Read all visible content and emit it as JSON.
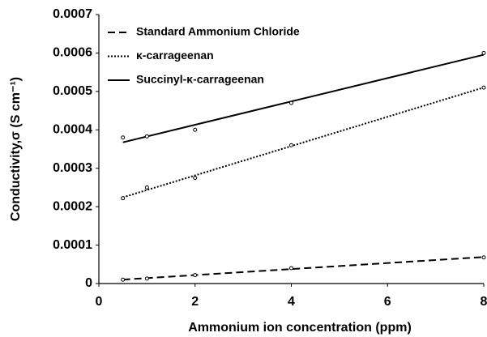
{
  "chart_data": {
    "type": "scatter",
    "xlabel": "Ammonium ion concentration (ppm)",
    "ylabel": "Conductivity,σ (S cm⁻¹)",
    "x": [
      0.5,
      1,
      2,
      4,
      8
    ],
    "xlim": [
      0,
      8
    ],
    "xticks": [
      0,
      2,
      4,
      6,
      8
    ],
    "ylim": [
      0,
      0.0007
    ],
    "yticks": [
      0,
      0.0001,
      0.0002,
      0.0003,
      0.0004,
      0.0005,
      0.0006,
      0.0007
    ],
    "grid": false,
    "legend": "upper left",
    "trendline": "linear",
    "series": [
      {
        "name": "Standard Ammonium Chloride",
        "color": "#000000",
        "line_style": "dashed",
        "values": [
          1e-05,
          1.3e-05,
          2.2e-05,
          4e-05,
          6.8e-05
        ]
      },
      {
        "name": "κ-carrageenan",
        "color": "#000000",
        "line_style": "dotted",
        "values": [
          0.000222,
          0.00025,
          0.000275,
          0.00036,
          0.00051
        ]
      },
      {
        "name": "Succinyl-κ-carrageenan",
        "color": "#000000",
        "line_style": "solid",
        "values": [
          0.00038,
          0.000383,
          0.0004,
          0.00047,
          0.0006
        ]
      }
    ]
  }
}
